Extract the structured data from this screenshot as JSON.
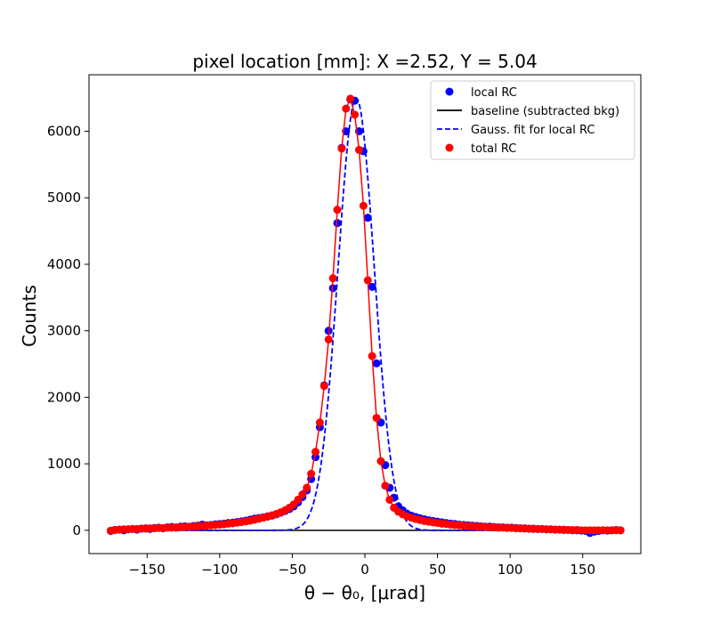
{
  "chart_data": {
    "type": "scatter",
    "title": "pixel location [mm]: X =2.52, Y = 5.04",
    "xlabel": "θ − θ₀, [μrad]",
    "ylabel": "Counts",
    "xlim": [
      -190,
      190
    ],
    "ylim": [
      -350,
      6850
    ],
    "xticks": [
      -150,
      -100,
      -50,
      0,
      50,
      100,
      150
    ],
    "xtick_labels": [
      "−150",
      "−100",
      "−50",
      "0",
      "50",
      "100",
      "150"
    ],
    "yticks": [
      0,
      1000,
      2000,
      3000,
      4000,
      5000,
      6000
    ],
    "ytick_labels": [
      "0",
      "1000",
      "2000",
      "3000",
      "4000",
      "5000",
      "6000"
    ],
    "grid": false,
    "legend_position": "top-right",
    "series": [
      {
        "name": "local RC",
        "style": "markers",
        "color": "#0000ff",
        "points": [
          [
            -175,
            -10
          ],
          [
            -172,
            5
          ],
          [
            -169,
            10
          ],
          [
            -166,
            0
          ],
          [
            -163,
            15
          ],
          [
            -160,
            20
          ],
          [
            -157,
            10
          ],
          [
            -154,
            25
          ],
          [
            -151,
            30
          ],
          [
            -148,
            20
          ],
          [
            -145,
            35
          ],
          [
            -142,
            40
          ],
          [
            -139,
            30
          ],
          [
            -136,
            45
          ],
          [
            -133,
            50
          ],
          [
            -130,
            40
          ],
          [
            -127,
            55
          ],
          [
            -124,
            60
          ],
          [
            -121,
            50
          ],
          [
            -118,
            65
          ],
          [
            -115,
            70
          ],
          [
            -112,
            85
          ],
          [
            -109,
            75
          ],
          [
            -106,
            80
          ],
          [
            -103,
            90
          ],
          [
            -100,
            95
          ],
          [
            -97,
            100
          ],
          [
            -94,
            110
          ],
          [
            -91,
            115
          ],
          [
            -88,
            125
          ],
          [
            -85,
            135
          ],
          [
            -82,
            145
          ],
          [
            -79,
            160
          ],
          [
            -76,
            175
          ],
          [
            -73,
            185
          ],
          [
            -70,
            195
          ],
          [
            -67,
            210
          ],
          [
            -64,
            220
          ],
          [
            -61,
            240
          ],
          [
            -58,
            265
          ],
          [
            -55,
            290
          ],
          [
            -52,
            320
          ],
          [
            -49,
            360
          ],
          [
            -46,
            420
          ],
          [
            -43,
            500
          ],
          [
            -40,
            600
          ],
          [
            -37,
            770
          ],
          [
            -34,
            1100
          ],
          [
            -31,
            1550
          ],
          [
            -28,
            2180
          ],
          [
            -25,
            3000
          ],
          [
            -22,
            3640
          ],
          [
            -19,
            4620
          ],
          [
            -16,
            5750
          ],
          [
            -13,
            6000
          ],
          [
            -10,
            6480
          ],
          [
            -7,
            6460
          ],
          [
            -4,
            6000
          ],
          [
            -1,
            5700
          ],
          [
            2,
            4700
          ],
          [
            5,
            3660
          ],
          [
            8,
            2510
          ],
          [
            11,
            1620
          ],
          [
            14,
            980
          ],
          [
            17,
            640
          ],
          [
            20,
            490
          ],
          [
            23,
            360
          ],
          [
            26,
            300
          ],
          [
            29,
            250
          ],
          [
            32,
            220
          ],
          [
            35,
            200
          ],
          [
            38,
            180
          ],
          [
            41,
            165
          ],
          [
            44,
            150
          ],
          [
            47,
            140
          ],
          [
            50,
            130
          ],
          [
            53,
            120
          ],
          [
            56,
            110
          ],
          [
            59,
            100
          ],
          [
            62,
            95
          ],
          [
            65,
            85
          ],
          [
            68,
            80
          ],
          [
            71,
            75
          ],
          [
            74,
            70
          ],
          [
            77,
            65
          ],
          [
            80,
            60
          ],
          [
            83,
            55
          ],
          [
            86,
            55
          ],
          [
            89,
            50
          ],
          [
            92,
            45
          ],
          [
            95,
            45
          ],
          [
            98,
            40
          ],
          [
            101,
            40
          ],
          [
            104,
            35
          ],
          [
            107,
            30
          ],
          [
            110,
            30
          ],
          [
            113,
            25
          ],
          [
            116,
            25
          ],
          [
            119,
            20
          ],
          [
            122,
            20
          ],
          [
            125,
            15
          ],
          [
            128,
            15
          ],
          [
            131,
            10
          ],
          [
            134,
            10
          ],
          [
            137,
            5
          ],
          [
            140,
            5
          ],
          [
            143,
            0
          ],
          [
            146,
            0
          ],
          [
            149,
            -5
          ],
          [
            152,
            -10
          ],
          [
            155,
            -40
          ],
          [
            158,
            -20
          ],
          [
            161,
            -10
          ],
          [
            164,
            0
          ],
          [
            167,
            -5
          ],
          [
            170,
            0
          ],
          [
            173,
            5
          ],
          [
            176,
            0
          ]
        ]
      },
      {
        "name": "baseline (subtracted bkg)",
        "style": "line",
        "color": "#000000",
        "points": [
          [
            -175,
            0
          ],
          [
            176,
            0
          ]
        ]
      },
      {
        "name": "Gauss. fit for local RC",
        "style": "dashed-line",
        "color": "#0000ff",
        "gaussian": {
          "amplitude": 6500,
          "center": -6,
          "sigma": 12.5
        },
        "x_range": [
          -175,
          176
        ]
      },
      {
        "name": "total RC",
        "style": "markers-line",
        "color": "#ff0000",
        "points": [
          [
            -175,
            -5
          ],
          [
            -172,
            5
          ],
          [
            -169,
            10
          ],
          [
            -166,
            15
          ],
          [
            -163,
            15
          ],
          [
            -160,
            20
          ],
          [
            -157,
            20
          ],
          [
            -154,
            25
          ],
          [
            -151,
            25
          ],
          [
            -148,
            30
          ],
          [
            -145,
            30
          ],
          [
            -142,
            35
          ],
          [
            -139,
            35
          ],
          [
            -136,
            40
          ],
          [
            -133,
            40
          ],
          [
            -130,
            45
          ],
          [
            -127,
            45
          ],
          [
            -124,
            50
          ],
          [
            -121,
            55
          ],
          [
            -118,
            55
          ],
          [
            -115,
            60
          ],
          [
            -112,
            65
          ],
          [
            -109,
            70
          ],
          [
            -106,
            75
          ],
          [
            -103,
            80
          ],
          [
            -100,
            85
          ],
          [
            -97,
            90
          ],
          [
            -94,
            100
          ],
          [
            -91,
            105
          ],
          [
            -88,
            115
          ],
          [
            -85,
            125
          ],
          [
            -82,
            135
          ],
          [
            -79,
            145
          ],
          [
            -76,
            160
          ],
          [
            -73,
            175
          ],
          [
            -70,
            190
          ],
          [
            -67,
            205
          ],
          [
            -64,
            225
          ],
          [
            -61,
            245
          ],
          [
            -58,
            270
          ],
          [
            -55,
            300
          ],
          [
            -52,
            340
          ],
          [
            -49,
            390
          ],
          [
            -46,
            460
          ],
          [
            -43,
            540
          ],
          [
            -40,
            640
          ],
          [
            -37,
            850
          ],
          [
            -34,
            1180
          ],
          [
            -31,
            1620
          ],
          [
            -28,
            2170
          ],
          [
            -25,
            2870
          ],
          [
            -22,
            3790
          ],
          [
            -19,
            4820
          ],
          [
            -16,
            5740
          ],
          [
            -13,
            6340
          ],
          [
            -10,
            6490
          ],
          [
            -7,
            6250
          ],
          [
            -4,
            5720
          ],
          [
            -1,
            4880
          ],
          [
            2,
            3760
          ],
          [
            5,
            2620
          ],
          [
            8,
            1690
          ],
          [
            11,
            1040
          ],
          [
            14,
            670
          ],
          [
            17,
            460
          ],
          [
            20,
            340
          ],
          [
            23,
            280
          ],
          [
            26,
            240
          ],
          [
            29,
            210
          ],
          [
            32,
            190
          ],
          [
            35,
            170
          ],
          [
            38,
            155
          ],
          [
            41,
            140
          ],
          [
            44,
            130
          ],
          [
            47,
            120
          ],
          [
            50,
            110
          ],
          [
            53,
            100
          ],
          [
            56,
            95
          ],
          [
            59,
            85
          ],
          [
            62,
            80
          ],
          [
            65,
            75
          ],
          [
            68,
            70
          ],
          [
            71,
            65
          ],
          [
            74,
            60
          ],
          [
            77,
            55
          ],
          [
            80,
            55
          ],
          [
            83,
            50
          ],
          [
            86,
            45
          ],
          [
            89,
            45
          ],
          [
            92,
            40
          ],
          [
            95,
            40
          ],
          [
            98,
            35
          ],
          [
            101,
            35
          ],
          [
            104,
            30
          ],
          [
            107,
            30
          ],
          [
            110,
            25
          ],
          [
            113,
            25
          ],
          [
            116,
            20
          ],
          [
            119,
            20
          ],
          [
            122,
            20
          ],
          [
            125,
            15
          ],
          [
            128,
            15
          ],
          [
            131,
            10
          ],
          [
            134,
            10
          ],
          [
            137,
            10
          ],
          [
            140,
            5
          ],
          [
            143,
            5
          ],
          [
            146,
            5
          ],
          [
            149,
            0
          ],
          [
            152,
            0
          ],
          [
            155,
            0
          ],
          [
            158,
            0
          ],
          [
            161,
            0
          ],
          [
            164,
            0
          ],
          [
            167,
            0
          ],
          [
            170,
            0
          ],
          [
            173,
            0
          ],
          [
            176,
            0
          ]
        ]
      }
    ]
  }
}
